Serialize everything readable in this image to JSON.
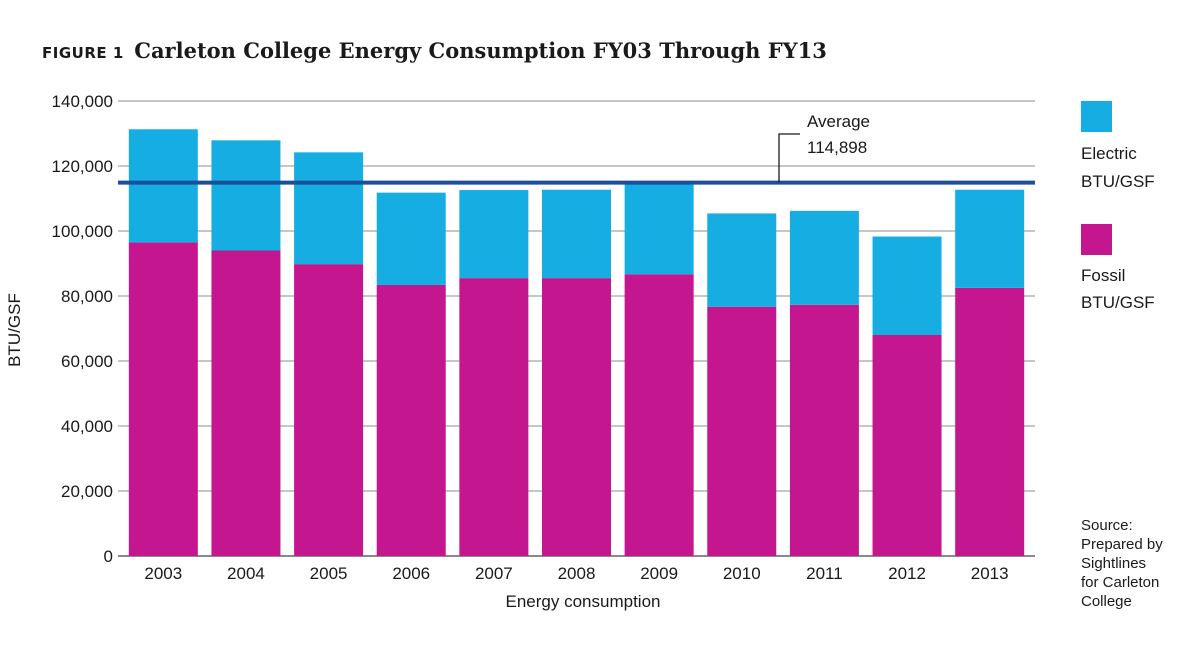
{
  "figure": {
    "label": "FIGURE 1",
    "title": "Carleton College Energy Consumption FY03 Through FY13",
    "source": "Source:\nPrepared by\nSightlines\nfor Carleton\nCollege"
  },
  "chart_data": {
    "type": "bar",
    "stacked": true,
    "categories": [
      "2003",
      "2004",
      "2005",
      "2006",
      "2007",
      "2008",
      "2009",
      "2010",
      "2011",
      "2012",
      "2013"
    ],
    "series": [
      {
        "name": "Fossil BTU/GSF",
        "legend_lines": [
          "Fossil",
          "BTU/GSF"
        ],
        "color": "#c4168e",
        "values": [
          96500,
          94000,
          89800,
          83400,
          85500,
          85500,
          86700,
          76700,
          77300,
          68000,
          82500
        ]
      },
      {
        "name": "Electric BTU/GSF",
        "legend_lines": [
          "Electric",
          "BTU/GSF"
        ],
        "color": "#16ade3",
        "values": [
          34800,
          33900,
          34400,
          28400,
          27100,
          27200,
          28400,
          28700,
          28900,
          30300,
          30200
        ]
      }
    ],
    "xlabel": "Energy consumption",
    "ylabel": "BTU/GSF",
    "ylim": [
      0,
      140000
    ],
    "yticks": [
      0,
      20000,
      40000,
      60000,
      80000,
      100000,
      120000,
      140000
    ],
    "ytick_labels": [
      "0",
      "20,000",
      "40,000",
      "60,000",
      "80,000",
      "100,000",
      "120,000",
      "140,000"
    ],
    "grid": "horizontal",
    "legend": "right",
    "reference_line": {
      "value": 114898,
      "label": "Average",
      "value_label": "114,898",
      "color": "#1b4f9c"
    }
  }
}
